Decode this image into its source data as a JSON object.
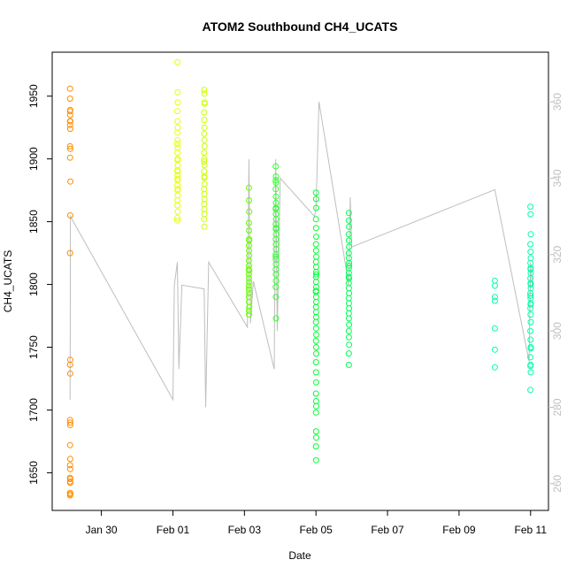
{
  "chart_data": {
    "type": "scatter",
    "title": "ATOM2 Southbound CH4_UCATS",
    "xlabel": "Date",
    "ylabel": "CH4_UCATS",
    "x_unit": "date (2017)",
    "xlim": [
      "2017-01-28T15:00",
      "2017-02-11T12:00"
    ],
    "ylim": [
      1620,
      1985
    ],
    "y2lim": [
      253,
      373
    ],
    "x_ticks": [
      {
        "date": "2017-01-30",
        "label": "Jan 30"
      },
      {
        "date": "2017-02-01",
        "label": "Feb 01"
      },
      {
        "date": "2017-02-03",
        "label": "Feb 03"
      },
      {
        "date": "2017-02-05",
        "label": "Feb 05"
      },
      {
        "date": "2017-02-07",
        "label": "Feb 07"
      },
      {
        "date": "2017-02-09",
        "label": "Feb 09"
      },
      {
        "date": "2017-02-11",
        "label": "Feb 11"
      }
    ],
    "y_ticks": [
      {
        "value": 1650,
        "label": "1650"
      },
      {
        "value": 1700,
        "label": "1700"
      },
      {
        "value": 1750,
        "label": "1750"
      },
      {
        "value": 1800,
        "label": "1800"
      },
      {
        "value": 1850,
        "label": "1850"
      },
      {
        "value": 1900,
        "label": "1900"
      },
      {
        "value": 1950,
        "label": "1950"
      }
    ],
    "y2_ticks": [
      {
        "value": 260,
        "label": "260"
      },
      {
        "value": 280,
        "label": "280"
      },
      {
        "value": 300,
        "label": "300"
      },
      {
        "value": 320,
        "label": "320"
      },
      {
        "value": 340,
        "label": "340"
      },
      {
        "value": 360,
        "label": "360"
      }
    ],
    "grid": false,
    "legend": "none",
    "colors": {
      "line": "#bebebe",
      "frame": "#000000",
      "flights": [
        "#ff8c00",
        "#e6ff00",
        "#ccff00",
        "#66ff00",
        "#33ff33",
        "#00ff33",
        "#00ff55",
        "#00ffaa"
      ]
    },
    "series": [
      {
        "color": "#ff8c00",
        "x": [
          "2017-01-29T03:00",
          "2017-01-29T03:00",
          "2017-01-29T03:06",
          "2017-01-29T03:00",
          "2017-01-29T03:12",
          "2017-01-29T03:00",
          "2017-01-29T03:06",
          "2017-01-29T03:00",
          "2017-01-29T03:06",
          "2017-01-29T03:00",
          "2017-01-29T03:12",
          "2017-01-29T03:06",
          "2017-01-29T03:00",
          "2017-01-29T03:06",
          "2017-01-29T03:00",
          "2017-01-29T03:06",
          "2017-01-29T03:00",
          "2017-01-29T03:06",
          "2017-01-29T03:00",
          "2017-01-29T03:06",
          "2017-01-29T03:00",
          "2017-01-29T03:06",
          "2017-01-29T03:00",
          "2017-01-29T03:06",
          "2017-01-29T03:00",
          "2017-01-29T03:06",
          "2017-01-29T03:00",
          "2017-01-29T03:06",
          "2017-01-29T03:00",
          "2017-01-29T03:06",
          "2017-01-29T03:00",
          "2017-01-29T03:06"
        ],
        "y": [
          1956,
          1948,
          1939,
          1938,
          1930,
          1927,
          1924,
          1910,
          1908,
          1901,
          1882,
          1855,
          1825,
          1740,
          1736,
          1729,
          1692,
          1688,
          1672,
          1661,
          1656,
          1653,
          1646,
          1645,
          1643,
          1642,
          1634,
          1633,
          1632,
          1690,
          1930,
          1935
        ]
      },
      {
        "color": "#e6ff00",
        "x": [
          "2017-02-01T03:00",
          "2017-02-01T03:06",
          "2017-02-01T03:12",
          "2017-02-01T03:00",
          "2017-02-01T03:06",
          "2017-02-01T03:12",
          "2017-02-01T03:00",
          "2017-02-01T03:06",
          "2017-02-01T03:12",
          "2017-02-01T03:00",
          "2017-02-01T03:06",
          "2017-02-01T03:12",
          "2017-02-01T03:00",
          "2017-02-01T03:06",
          "2017-02-01T03:12",
          "2017-02-01T03:00",
          "2017-02-01T03:06",
          "2017-02-01T03:12",
          "2017-02-01T03:00",
          "2017-02-01T03:06",
          "2017-02-01T03:12",
          "2017-02-01T03:00",
          "2017-02-01T03:06",
          "2017-02-01T03:12",
          "2017-02-01T03:00",
          "2017-02-01T03:06",
          "2017-02-01T03:12",
          "2017-02-01T03:00"
        ],
        "y": [
          1977,
          1953,
          1945,
          1938,
          1930,
          1925,
          1921,
          1915,
          1909,
          1905,
          1899,
          1895,
          1891,
          1887,
          1883,
          1879,
          1875,
          1871,
          1867,
          1863,
          1858,
          1853,
          1890,
          1900,
          1912,
          1884,
          1876,
          1851
        ]
      },
      {
        "color": "#ccff00",
        "x": [
          "2017-02-01T21:00",
          "2017-02-01T21:06",
          "2017-02-01T21:12",
          "2017-02-01T21:00",
          "2017-02-01T21:06",
          "2017-02-01T21:12",
          "2017-02-01T21:00",
          "2017-02-01T21:06",
          "2017-02-01T21:12",
          "2017-02-01T21:00",
          "2017-02-01T21:06",
          "2017-02-01T21:12",
          "2017-02-01T21:00",
          "2017-02-01T21:06",
          "2017-02-01T21:12",
          "2017-02-01T21:00",
          "2017-02-01T21:06",
          "2017-02-01T21:12",
          "2017-02-01T21:00",
          "2017-02-01T21:06",
          "2017-02-01T21:12",
          "2017-02-01T21:00",
          "2017-02-01T21:06",
          "2017-02-01T21:12",
          "2017-02-01T21:00",
          "2017-02-01T21:06"
        ],
        "y": [
          1955,
          1952,
          1945,
          1937,
          1931,
          1925,
          1920,
          1915,
          1910,
          1905,
          1900,
          1895,
          1890,
          1885,
          1880,
          1876,
          1872,
          1868,
          1864,
          1860,
          1856,
          1852,
          1846,
          1944,
          1898,
          1886
        ]
      },
      {
        "color": "#66ff00",
        "x": [
          "2017-02-03T03:00",
          "2017-02-03T03:06",
          "2017-02-03T03:12",
          "2017-02-03T03:00",
          "2017-02-03T03:06",
          "2017-02-03T03:12",
          "2017-02-03T03:00",
          "2017-02-03T03:06",
          "2017-02-03T03:12",
          "2017-02-03T03:00",
          "2017-02-03T03:06",
          "2017-02-03T03:12",
          "2017-02-03T03:00",
          "2017-02-03T03:06",
          "2017-02-03T03:12",
          "2017-02-03T03:00",
          "2017-02-03T03:06",
          "2017-02-03T03:12",
          "2017-02-03T03:00",
          "2017-02-03T03:06",
          "2017-02-03T03:12",
          "2017-02-03T03:00",
          "2017-02-03T03:06",
          "2017-02-03T03:12",
          "2017-02-03T03:00",
          "2017-02-03T03:06"
        ],
        "y": [
          1877,
          1867,
          1858,
          1849,
          1843,
          1836,
          1831,
          1827,
          1823,
          1819,
          1815,
          1811,
          1808,
          1805,
          1802,
          1799,
          1796,
          1793,
          1790,
          1786,
          1782,
          1779,
          1776,
          1835,
          1812,
          1796
        ]
      },
      {
        "color": "#33ff33",
        "x": [
          "2017-02-03T21:00",
          "2017-02-03T21:06",
          "2017-02-03T21:12",
          "2017-02-03T21:00",
          "2017-02-03T21:06",
          "2017-02-03T21:12",
          "2017-02-03T21:00",
          "2017-02-03T21:06",
          "2017-02-03T21:12",
          "2017-02-03T21:00",
          "2017-02-03T21:06",
          "2017-02-03T21:12",
          "2017-02-03T21:00",
          "2017-02-03T21:06",
          "2017-02-03T21:12",
          "2017-02-03T21:00",
          "2017-02-03T21:06",
          "2017-02-03T21:12",
          "2017-02-03T21:00",
          "2017-02-03T21:06",
          "2017-02-03T21:12",
          "2017-02-03T21:00",
          "2017-02-03T21:06",
          "2017-02-03T21:12",
          "2017-02-03T21:00",
          "2017-02-03T21:06",
          "2017-02-03T21:12",
          "2017-02-03T21:00"
        ],
        "y": [
          1894,
          1886,
          1881,
          1876,
          1870,
          1865,
          1860,
          1856,
          1852,
          1848,
          1844,
          1840,
          1836,
          1832,
          1828,
          1824,
          1820,
          1816,
          1812,
          1808,
          1803,
          1798,
          1790,
          1773,
          1883,
          1861,
          1845,
          1822
        ]
      },
      {
        "color": "#00ff33",
        "x": [
          "2017-02-05T00:00",
          "2017-02-05T00:06",
          "2017-02-05T00:12",
          "2017-02-05T00:00",
          "2017-02-05T00:06",
          "2017-02-05T00:12",
          "2017-02-05T00:00",
          "2017-02-05T00:06",
          "2017-02-05T00:12",
          "2017-02-05T00:00",
          "2017-02-05T00:06",
          "2017-02-05T00:12",
          "2017-02-05T00:00",
          "2017-02-05T00:06",
          "2017-02-05T00:12",
          "2017-02-05T00:00",
          "2017-02-05T00:06",
          "2017-02-05T00:12",
          "2017-02-05T00:00",
          "2017-02-05T00:06",
          "2017-02-05T00:12",
          "2017-02-05T00:00",
          "2017-02-05T00:06",
          "2017-02-05T00:12",
          "2017-02-05T00:00",
          "2017-02-05T00:06",
          "2017-02-05T00:12",
          "2017-02-05T00:00",
          "2017-02-05T00:06",
          "2017-02-05T00:12",
          "2017-02-05T00:00",
          "2017-02-05T00:06",
          "2017-02-05T00:12",
          "2017-02-05T00:00",
          "2017-02-05T00:06",
          "2017-02-05T00:12",
          "2017-02-05T00:00",
          "2017-02-05T00:06",
          "2017-02-05T00:12",
          "2017-02-05T00:00"
        ],
        "y": [
          1873,
          1868,
          1861,
          1852,
          1845,
          1838,
          1832,
          1827,
          1822,
          1818,
          1814,
          1810,
          1806,
          1802,
          1798,
          1794,
          1790,
          1786,
          1782,
          1778,
          1774,
          1770,
          1765,
          1760,
          1755,
          1750,
          1745,
          1738,
          1730,
          1722,
          1713,
          1707,
          1703,
          1698,
          1683,
          1678,
          1671,
          1660,
          1808,
          1795
        ]
      },
      {
        "color": "#00ff55",
        "x": [
          "2017-02-05T22:00",
          "2017-02-05T22:06",
          "2017-02-05T22:12",
          "2017-02-05T22:00",
          "2017-02-05T22:06",
          "2017-02-05T22:12",
          "2017-02-05T22:00",
          "2017-02-05T22:06",
          "2017-02-05T22:12",
          "2017-02-05T22:00",
          "2017-02-05T22:06",
          "2017-02-05T22:12",
          "2017-02-05T22:00",
          "2017-02-05T22:06",
          "2017-02-05T22:12",
          "2017-02-05T22:00",
          "2017-02-05T22:06",
          "2017-02-05T22:12",
          "2017-02-05T22:00",
          "2017-02-05T22:06",
          "2017-02-05T22:12",
          "2017-02-05T22:00",
          "2017-02-05T22:06",
          "2017-02-05T22:12",
          "2017-02-05T22:00",
          "2017-02-05T22:06",
          "2017-02-05T22:12",
          "2017-02-05T22:00"
        ],
        "y": [
          1857,
          1851,
          1846,
          1840,
          1835,
          1830,
          1825,
          1821,
          1817,
          1813,
          1809,
          1805,
          1801,
          1797,
          1793,
          1789,
          1785,
          1781,
          1777,
          1773,
          1768,
          1763,
          1758,
          1752,
          1745,
          1736,
          1815,
          1806
        ]
      },
      {
        "color": "#00ffaa",
        "x": [
          "2017-02-10T00:00",
          "2017-02-10T00:00",
          "2017-02-10T00:00",
          "2017-02-10T00:00",
          "2017-02-10T00:00",
          "2017-02-10T00:00",
          "2017-02-10T00:00",
          "2017-02-10T23:54",
          "2017-02-11T00:00",
          "2017-02-11T00:06",
          "2017-02-10T23:54",
          "2017-02-11T00:00",
          "2017-02-11T00:06",
          "2017-02-10T23:54",
          "2017-02-11T00:00",
          "2017-02-11T00:06",
          "2017-02-10T23:54",
          "2017-02-11T00:00",
          "2017-02-11T00:06",
          "2017-02-10T23:54",
          "2017-02-11T00:00",
          "2017-02-11T00:06",
          "2017-02-10T23:54",
          "2017-02-11T00:00",
          "2017-02-11T00:06",
          "2017-02-10T23:54",
          "2017-02-11T00:00",
          "2017-02-11T00:06",
          "2017-02-10T23:54",
          "2017-02-11T00:00",
          "2017-02-11T00:06",
          "2017-02-10T23:54",
          "2017-02-11T00:00",
          "2017-02-11T00:06",
          "2017-02-10T23:54",
          "2017-02-11T00:00",
          "2017-02-11T00:06",
          "2017-02-10T23:54"
        ],
        "y": [
          1803,
          1799,
          1790,
          1787,
          1765,
          1748,
          1734,
          1862,
          1856,
          1840,
          1832,
          1826,
          1821,
          1817,
          1813,
          1809,
          1805,
          1801,
          1797,
          1793,
          1789,
          1785,
          1781,
          1776,
          1770,
          1763,
          1756,
          1749,
          1742,
          1736,
          1730,
          1716,
          1812,
          1800,
          1791,
          1784,
          1750,
          1735
        ]
      }
    ],
    "line_x": [
      "2017-01-29T03:00",
      "2017-01-29T03:06",
      "2017-01-29T03:12",
      "2017-02-01T00:00",
      "2017-02-01T01:00",
      "2017-02-01T03:00",
      "2017-02-01T04:00",
      "2017-02-01T06:00",
      "2017-02-01T21:00",
      "2017-02-01T22:00",
      "2017-02-02T00:00",
      "2017-02-03T02:00",
      "2017-02-03T03:00",
      "2017-02-03T04:00",
      "2017-02-03T06:00",
      "2017-02-03T20:00",
      "2017-02-03T21:00",
      "2017-02-03T22:00",
      "2017-02-04T00:00",
      "2017-02-04T23:00",
      "2017-02-05T00:00",
      "2017-02-05T02:00",
      "2017-02-05T22:00",
      "2017-02-05T23:00",
      "2017-02-06T00:00",
      "2017-02-10T00:00",
      "2017-02-10T23:00",
      "2017-02-11T00:00",
      "2017-02-11T01:00"
    ],
    "line_y2": [
      282,
      300,
      330,
      282,
      312,
      318,
      290,
      312,
      311,
      280,
      318,
      301,
      345,
      302,
      313,
      290,
      345,
      300,
      340,
      330,
      332,
      360,
      312,
      335,
      322,
      337,
      292,
      318,
      312
    ]
  }
}
